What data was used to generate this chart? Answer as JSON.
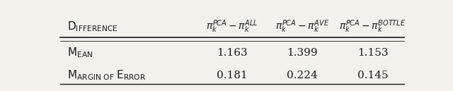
{
  "col_headers": [
    "$\\pi_k^{PCA} - \\pi_k^{ALL}$",
    "$\\pi_k^{PCA} - \\pi_k^{AVE}$",
    "$\\pi_k^{PCA} - \\pi_k^{BOTTLE}$"
  ],
  "data": [
    [
      "1.163",
      "1.399",
      "1.153"
    ],
    [
      "0.181",
      "0.224",
      "0.145"
    ]
  ],
  "background_color": "#f2f1ec",
  "text_color": "#1a1a1a",
  "font_size": 11
}
